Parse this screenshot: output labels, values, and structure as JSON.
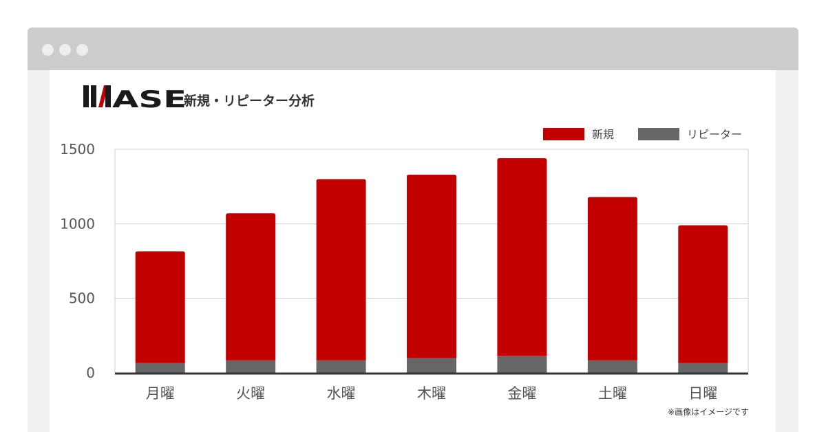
{
  "colors": {
    "titlebar": "#cccccc",
    "window_bg": "#f1f1f1",
    "content_bg": "#ffffff",
    "new": "#c20000",
    "repeater": "#666666",
    "grid": "#cccccc",
    "axis": "#333333"
  },
  "header": {
    "logo_text": "IIMASE",
    "chart_title": "新規・リピーター分析"
  },
  "note": "※画像はイメージです",
  "chart_data": {
    "type": "bar",
    "stacked": true,
    "categories": [
      "月曜",
      "火曜",
      "水曜",
      "木曜",
      "金曜",
      "土曜",
      "日曜"
    ],
    "series": [
      {
        "name": "リピーター",
        "color": "#666666",
        "values": [
          65,
          85,
          85,
          100,
          115,
          85,
          65
        ]
      },
      {
        "name": "新規",
        "color": "#c20000",
        "values": [
          750,
          985,
          1215,
          1230,
          1325,
          1095,
          925
        ]
      }
    ],
    "totals": [
      815,
      1070,
      1300,
      1330,
      1440,
      1180,
      990
    ],
    "yticks": [
      0,
      500,
      1000,
      1500
    ],
    "ylim": [
      0,
      1500
    ],
    "grid": true,
    "legend": {
      "position": "top-right",
      "items": [
        {
          "name": "新規",
          "color": "#c20000"
        },
        {
          "name": "リピーター",
          "color": "#666666"
        }
      ]
    }
  }
}
